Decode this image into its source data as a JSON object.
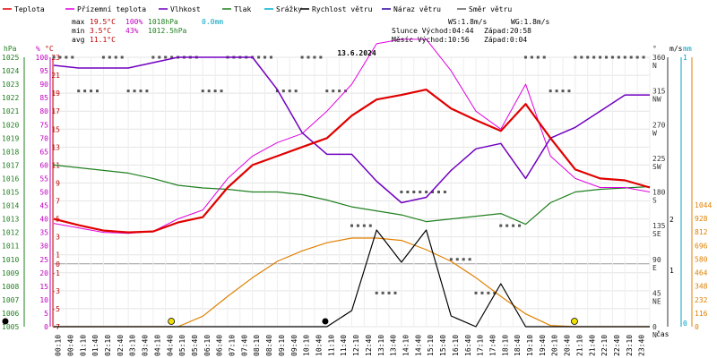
{
  "chart_data": {
    "type": "line",
    "title": "13.6.2024",
    "legend": [
      {
        "name": "Teplota",
        "color": "#e00000"
      },
      {
        "name": "Přízemní teplota",
        "color": "#e000e0"
      },
      {
        "name": "Vlhkost",
        "color": "#7000c0"
      },
      {
        "name": "Tlak",
        "color": "#208020"
      },
      {
        "name": "Srážky",
        "color": "#00b0d0"
      },
      {
        "name": "Rychlost větru",
        "color": "#000000"
      },
      {
        "name": "Náraz větru",
        "color": "#3000a0"
      },
      {
        "name": "Směr větru",
        "color": "#606060"
      }
    ],
    "stats": {
      "max": {
        "label": "max",
        "temp": "19.5°C",
        "hum": "100%",
        "press": "1018hPa",
        "rain": "0.0mm"
      },
      "min": {
        "label": "min",
        "temp": "3.5°C",
        "hum": "43%",
        "press": "1012.5hPa"
      },
      "avg": {
        "label": "avg",
        "temp": "11.1°C"
      },
      "wind": {
        "ws": "WS:1.8m/s",
        "wg": "WG:1.8m/s"
      },
      "sun": {
        "rise": "Slunce Východ:04:44",
        "set": "Západ:20:58"
      },
      "moon": {
        "rise": "Měsíc  Východ:10:56",
        "set": "Západ:0:04"
      }
    },
    "axes": {
      "hpa": {
        "unit": "hPa",
        "ticks": [
          "1025",
          "1024",
          "1023",
          "1022",
          "1021",
          "1020",
          "1019",
          "1018",
          "1017",
          "1016",
          "1015",
          "1014",
          "1013",
          "1012",
          "1011",
          "1010",
          "1009",
          "1008",
          "1007",
          "1006",
          "1005"
        ],
        "color": "#208020"
      },
      "pct": {
        "unit": "%",
        "ticks": [
          "100",
          "95",
          "90",
          "85",
          "80",
          "75",
          "70",
          "65",
          "60",
          "55",
          "50",
          "45",
          "40",
          "35",
          "30",
          "25",
          "20",
          "15",
          "10",
          "5",
          "0"
        ],
        "color": "#c000c0"
      },
      "temp": {
        "unit": "°C",
        "ticks": [
          "23",
          "21",
          "19",
          "17",
          "15",
          "13",
          "11",
          "9",
          "7",
          "5",
          "3",
          "1",
          "0",
          "-1",
          "-3",
          "-5",
          "-7"
        ],
        "color": "#c00000"
      },
      "dir": {
        "unit": "°",
        "ticks": [
          {
            "deg": "360",
            "name": "N"
          },
          {
            "deg": "315",
            "name": "NW"
          },
          {
            "deg": "270",
            "name": "W"
          },
          {
            "deg": "225",
            "name": "SW"
          },
          {
            "deg": "180",
            "name": "S"
          },
          {
            "deg": "135",
            "name": "SE"
          },
          {
            "deg": "90",
            "name": "E"
          },
          {
            "deg": "45",
            "name": "NE"
          },
          {
            "deg": "0",
            "name": "N"
          }
        ]
      },
      "ms": {
        "unit": "m/s",
        "ticks": [
          "2",
          "1"
        ]
      },
      "mm": {
        "unit": "mm",
        "ticks": [
          "1",
          "0"
        ]
      },
      "rad": {
        "ticks": [
          "1044",
          "928",
          "812",
          "696",
          "580",
          "464",
          "348",
          "232",
          "116",
          "0"
        ]
      },
      "x": {
        "label": "čas",
        "ticks": [
          "00:10",
          "00:40",
          "01:10",
          "01:40",
          "02:10",
          "02:40",
          "03:10",
          "03:40",
          "04:10",
          "04:40",
          "05:10",
          "05:40",
          "06:10",
          "06:40",
          "07:10",
          "07:40",
          "08:10",
          "08:40",
          "09:10",
          "09:40",
          "10:10",
          "10:40",
          "11:10",
          "11:40",
          "12:10",
          "12:40",
          "13:10",
          "13:40",
          "14:10",
          "14:40",
          "15:10",
          "15:40",
          "16:10",
          "16:40",
          "17:10",
          "17:40",
          "18:10",
          "18:40",
          "19:10",
          "19:40",
          "20:10",
          "20:40",
          "21:10",
          "21:40",
          "22:10",
          "22:40",
          "23:10",
          "23:40"
        ]
      }
    },
    "hours": [
      0,
      1,
      2,
      3,
      4,
      5,
      6,
      7,
      8,
      9,
      10,
      11,
      12,
      13,
      14,
      15,
      16,
      17,
      18,
      19,
      20,
      21,
      22,
      23,
      24
    ],
    "temperature": [
      5.0,
      4.3,
      3.7,
      3.5,
      3.6,
      4.6,
      5.2,
      8.5,
      11.0,
      12.0,
      13.0,
      14.0,
      16.5,
      18.3,
      18.8,
      19.4,
      17.3,
      16.0,
      14.8,
      17.8,
      14.0,
      10.5,
      9.5,
      9.3,
      8.5
    ],
    "ground_temperature": [
      4.5,
      4.0,
      3.5,
      3.4,
      3.6,
      5.0,
      6.0,
      9.5,
      12.0,
      13.5,
      14.5,
      17.0,
      20.0,
      24.5,
      25.0,
      25.0,
      21.5,
      17.0,
      15.0,
      20.0,
      12.0,
      9.5,
      8.5,
      8.5,
      8.0
    ],
    "humidity": [
      97,
      96,
      96,
      96,
      98,
      100,
      100,
      100,
      100,
      88,
      72,
      64,
      64,
      54,
      46,
      48,
      58,
      66,
      68,
      55,
      70,
      74,
      80,
      86,
      86
    ],
    "pressure": [
      1017.0,
      1016.8,
      1016.6,
      1016.4,
      1016.0,
      1015.5,
      1015.3,
      1015.2,
      1015.0,
      1015.0,
      1014.8,
      1014.4,
      1013.9,
      1013.6,
      1013.3,
      1012.8,
      1013.0,
      1013.2,
      1013.4,
      1012.6,
      1014.2,
      1015.0,
      1015.2,
      1015.3,
      1015.4
    ],
    "wind_speed": [
      0,
      0,
      0,
      0,
      0,
      0,
      0,
      0,
      0,
      0,
      0,
      0,
      0.3,
      1.8,
      1.2,
      1.8,
      0.2,
      0,
      0.8,
      0,
      0,
      0,
      0,
      0,
      0
    ],
    "solar_radiation": [
      0,
      0,
      0,
      0,
      0,
      0,
      90,
      260,
      420,
      560,
      650,
      720,
      760,
      760,
      740,
      660,
      560,
      420,
      260,
      110,
      10,
      0,
      0,
      0,
      0
    ],
    "wind_direction": [
      360,
      315,
      360,
      315,
      360,
      360,
      315,
      360,
      360,
      315,
      360,
      315,
      135,
      45,
      180,
      180,
      90,
      45,
      135,
      360,
      315,
      360,
      360,
      360,
      360
    ],
    "rain": [
      0,
      0,
      0,
      0,
      0,
      0,
      0,
      0,
      0,
      0,
      0,
      0,
      0,
      0,
      0,
      0,
      0,
      0,
      0,
      0,
      0,
      0,
      0,
      0,
      0
    ],
    "sun_events": [
      "04:44",
      "20:58"
    ],
    "moon_events": [
      "10:56",
      "0:04"
    ]
  }
}
